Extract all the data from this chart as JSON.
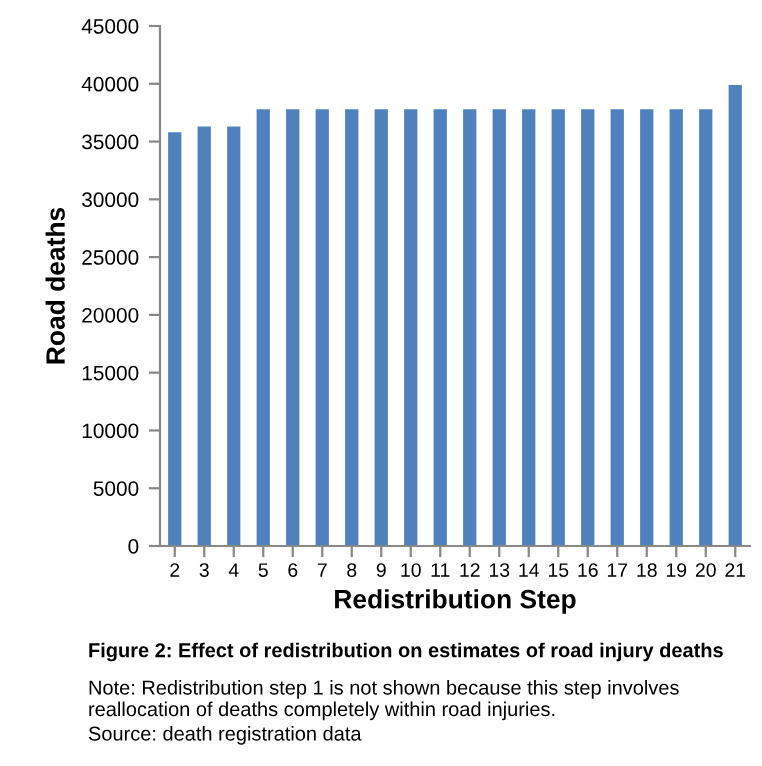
{
  "chart_data": {
    "type": "bar",
    "title": "Figure 2: Effect of redistribution on estimates of road injury deaths",
    "xlabel": "Redistribution Step",
    "ylabel": "Road deaths",
    "categories": [
      "2",
      "3",
      "4",
      "5",
      "6",
      "7",
      "8",
      "9",
      "10",
      "11",
      "12",
      "13",
      "14",
      "15",
      "16",
      "17",
      "18",
      "19",
      "20",
      "21"
    ],
    "values": [
      35800,
      36300,
      36300,
      37800,
      37800,
      37800,
      37800,
      37800,
      37800,
      37800,
      37800,
      37800,
      37800,
      37800,
      37800,
      37800,
      37800,
      37800,
      37800,
      39900
    ],
    "color": "#4f81bd",
    "ylim": [
      0,
      45000
    ],
    "yticks": [
      0,
      5000,
      10000,
      15000,
      20000,
      25000,
      30000,
      35000,
      40000,
      45000
    ],
    "grid": false,
    "annotations": [
      "Note: Redistribution step 1 is not shown because this step involves reallocation of deaths completely within road injuries.",
      "Source: death registration data"
    ]
  }
}
